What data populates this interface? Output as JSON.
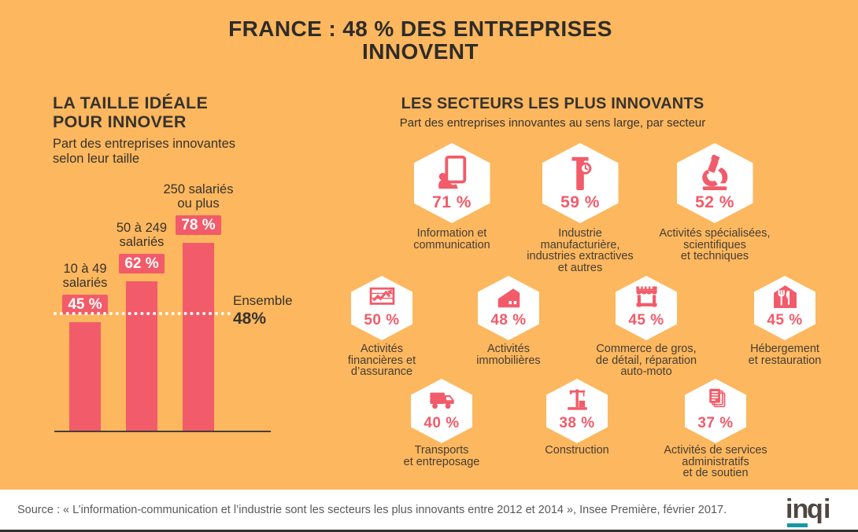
{
  "page": {
    "title_line1": "FRANCE : 48 % DES ENTREPRISES",
    "title_line2": "INNOVENT"
  },
  "size_section": {
    "heading": "LA TAILLE IDÉALE\nPOUR INNOVER",
    "subheading": "Part des entreprises innovantes\nselon leur taille",
    "ensemble_label": "Ensemble",
    "ensemble_value": "48%",
    "bars": [
      {
        "label": "10 à 49\nsalariés",
        "value": 45,
        "value_label": "45 %"
      },
      {
        "label": "50 à 249\nsalariés",
        "value": 62,
        "value_label": "62 %"
      },
      {
        "label": "250 salariés\nou plus",
        "value": 78,
        "value_label": "78 %"
      }
    ]
  },
  "sectors_section": {
    "heading": "LES SECTEURS LES PLUS INNOVANTS",
    "subheading": "Part des entreprises innovantes au sens large, par secteur",
    "rows": [
      [
        {
          "label": "Information et\ncommunication",
          "value_label": "71 %",
          "icon": "tablet-touch-icon"
        },
        {
          "label": "Industrie\nmanufacturière,\nindustries extractives\net autres",
          "value_label": "59 %",
          "icon": "caliper-icon"
        },
        {
          "label": "Activités spécialisées,\nscientifiques\net techniques",
          "value_label": "52 %",
          "icon": "microscope-icon"
        }
      ],
      [
        {
          "label": "Activités\nfinancières et\nd’assurance",
          "value_label": "50 %",
          "icon": "finance-chart-icon"
        },
        {
          "label": "Activités\nimmobilières",
          "value_label": "48 %",
          "icon": "house-icon"
        },
        {
          "label": "Commerce de gros,\nde détail, réparation\nauto-moto",
          "value_label": "45 %",
          "icon": "storefront-icon"
        },
        {
          "label": "Hébergement\net restauration",
          "value_label": "45 %",
          "icon": "restaurant-icon"
        }
      ],
      [
        {
          "label": "Transports\net entreposage",
          "value_label": "40 %",
          "icon": "truck-icon"
        },
        {
          "label": "Construction",
          "value_label": "38 %",
          "icon": "crane-icon"
        },
        {
          "label": "Activités de services\nadministratifs\net de soutien",
          "value_label": "37 %",
          "icon": "documents-icon"
        }
      ]
    ]
  },
  "footer": {
    "source": "Source : « L’information-communication et l’industrie sont les secteurs les plus innovants entre 2012 et 2014 », Insee Première, février 2017.",
    "logo_part1": "in",
    "logo_part2": "p",
    "logo_part3": "i"
  },
  "colors": {
    "background": "#FDB75E",
    "accent_pink": "#F25B69",
    "text_dark": "#37332D",
    "label_dark": "#453E35",
    "logo_gray": "#4E4740",
    "logo_teal": "#1798A5",
    "hexagon_white": "#FFFFFF"
  },
  "chart_data": [
    {
      "type": "bar",
      "title": "LA TAILLE IDÉALE POUR INNOVER",
      "subtitle": "Part des entreprises innovantes selon leur taille",
      "categories": [
        "10 à 49 salariés",
        "50 à 249 salariés",
        "250 salariés ou plus"
      ],
      "values": [
        45,
        62,
        78
      ],
      "unit": "%",
      "reference_line": {
        "label": "Ensemble",
        "value": 48
      },
      "ylim": [
        0,
        100
      ],
      "grid": false,
      "bar_color": "#F25B69"
    },
    {
      "type": "table",
      "title": "LES SECTEURS LES PLUS INNOVANTS",
      "subtitle": "Part des entreprises innovantes au sens large, par secteur",
      "categories": [
        "Information et communication",
        "Industrie manufacturière, industries extractives et autres",
        "Activités spécialisées, scientifiques et techniques",
        "Activités financières et d’assurance",
        "Activités immobilières",
        "Commerce de gros, de détail, réparation auto-moto",
        "Hébergement et restauration",
        "Transports et entreposage",
        "Construction",
        "Activités de services administratifs et de soutien"
      ],
      "values": [
        71,
        59,
        52,
        50,
        48,
        45,
        45,
        40,
        38,
        37
      ],
      "unit": "%"
    }
  ]
}
